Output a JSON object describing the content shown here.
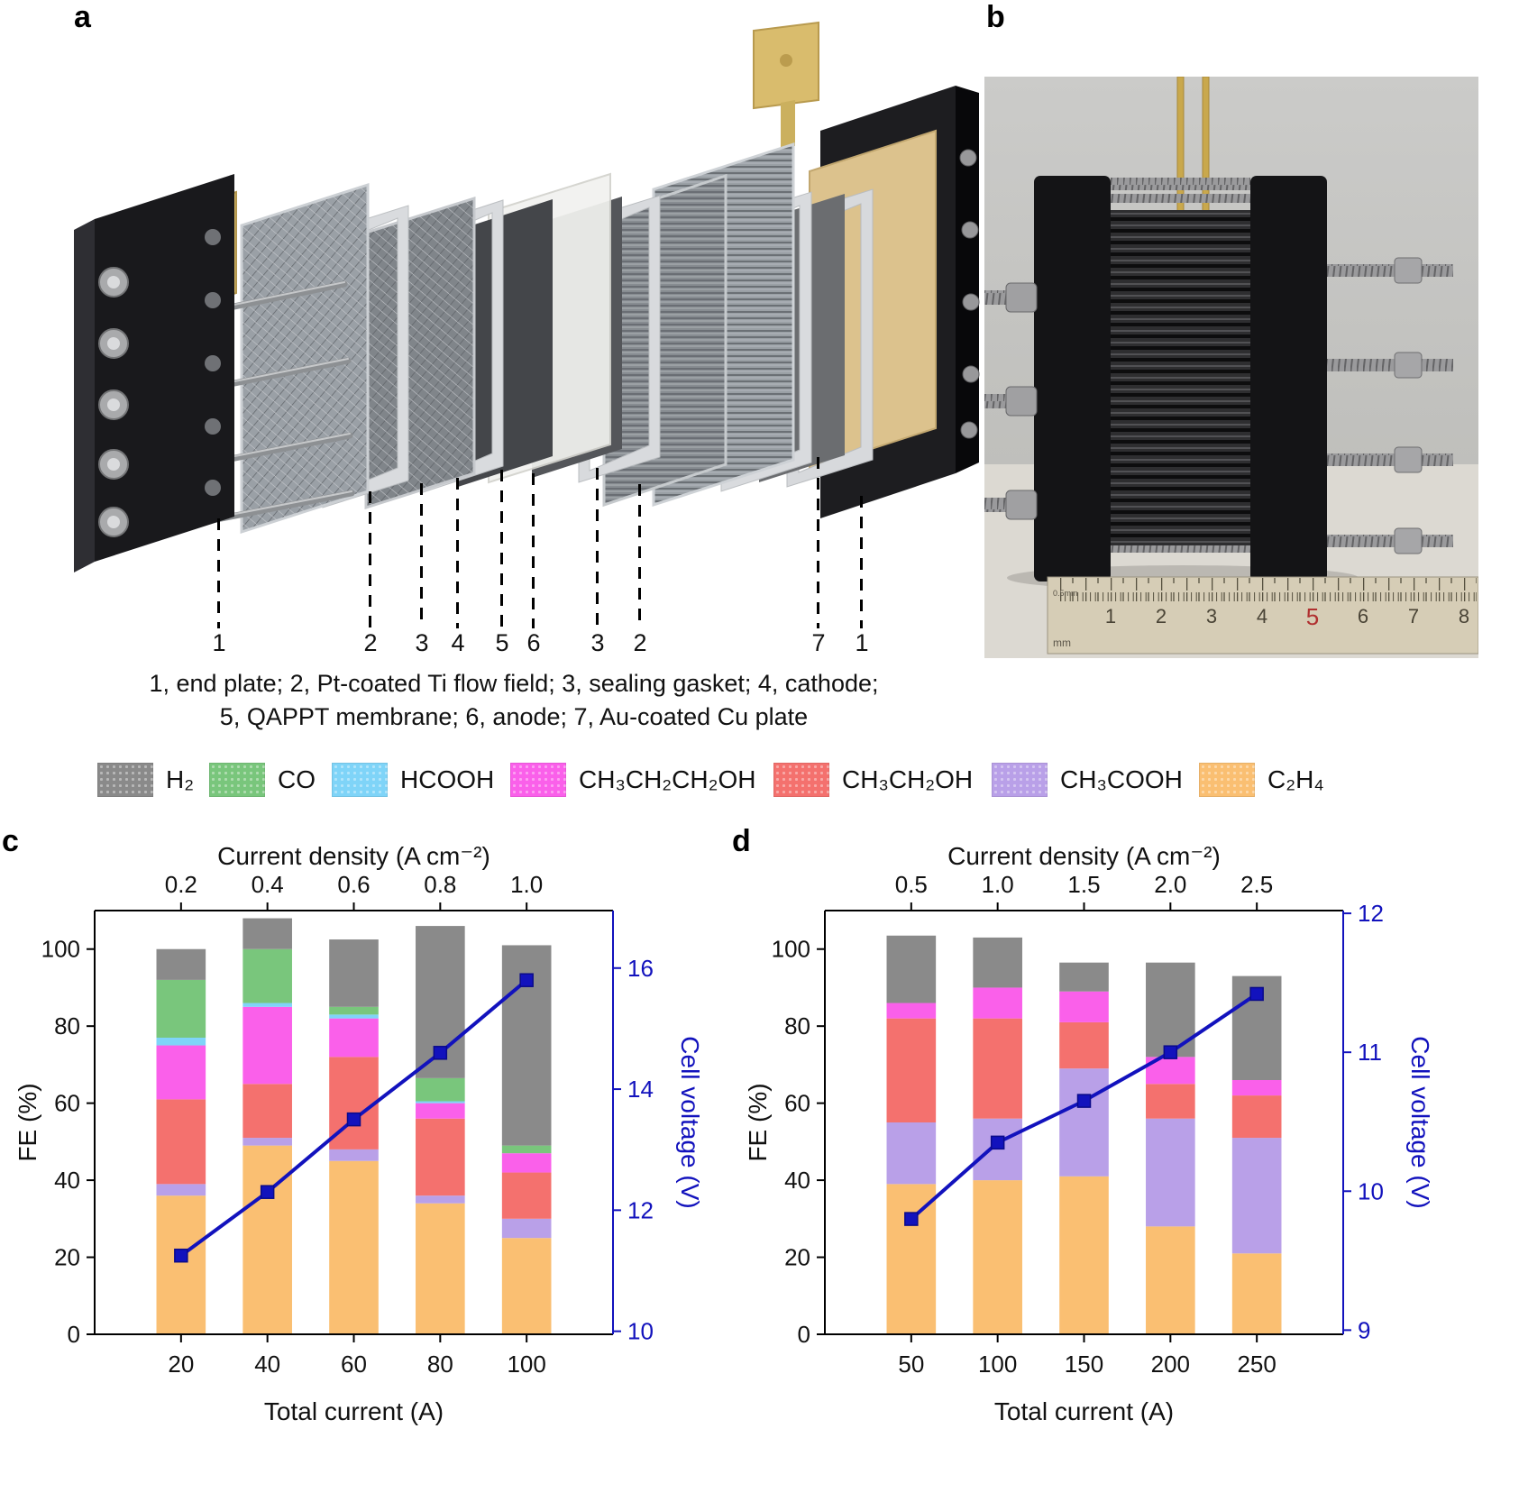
{
  "figure": {
    "panels": {
      "a": {
        "label": "a",
        "number_labels": [
          "1",
          "2",
          "3",
          "4",
          "5",
          "6",
          "3",
          "2",
          "7",
          "1"
        ],
        "caption_line1": "1, end plate; 2, Pt-coated Ti flow field; 3, sealing gasket; 4, cathode;",
        "caption_line2": "5, QAPPT membrane; 6, anode; 7, Au-coated Cu plate"
      },
      "b": {
        "label": "b",
        "ruler_numbers": [
          "1",
          "2",
          "3",
          "4",
          "5",
          "6",
          "7",
          "8"
        ],
        "ruler_fineprint": "0.5mm",
        "ruler_unit": "mm"
      },
      "c": {
        "label": "c"
      },
      "d": {
        "label": "d"
      }
    },
    "legend": [
      {
        "name": "H₂",
        "color": "#8a8a8a"
      },
      {
        "name": "CO",
        "color": "#79c67c"
      },
      {
        "name": "HCOOH",
        "color": "#7fd4f8"
      },
      {
        "name": "CH₃CH₂CH₂OH",
        "color": "#fa60ea"
      },
      {
        "name": "CH₃CH₂OH",
        "color": "#f4716e"
      },
      {
        "name": "CH₃COOH",
        "color": "#b9a0e8"
      },
      {
        "name": "C₂H₄",
        "color": "#fabf72"
      }
    ]
  },
  "chart_data": [
    {
      "svg_id": "chart-c",
      "type": "bar",
      "panel": "c",
      "top_axis": {
        "label": "Current density (A cm⁻²)",
        "ticks": [
          "0.2",
          "0.4",
          "0.6",
          "0.8",
          "1.0"
        ]
      },
      "bottom_axis": {
        "label": "Total current (A)",
        "ticks": [
          "20",
          "40",
          "60",
          "80",
          "100"
        ]
      },
      "left_axis": {
        "label": "FE (%)",
        "ticks": [
          0,
          20,
          40,
          60,
          80,
          100
        ],
        "min": 0,
        "max": 110
      },
      "right_axis": {
        "label": "Cell voltage (V)",
        "ticks": [
          10,
          12,
          14,
          16
        ],
        "min": 9.95,
        "max": 16.95,
        "color": "#1212bd"
      },
      "categories": [
        "20",
        "40",
        "60",
        "80",
        "100"
      ],
      "series": [
        {
          "name": "C₂H₄",
          "color": "#fabf72",
          "values": [
            36,
            49,
            45,
            34,
            25
          ]
        },
        {
          "name": "CH₃COOH",
          "color": "#b9a0e8",
          "values": [
            3,
            2,
            3,
            2,
            5
          ]
        },
        {
          "name": "CH₃CH₂OH",
          "color": "#f4716e",
          "values": [
            22,
            14,
            24,
            20,
            12
          ]
        },
        {
          "name": "CH₃CH₂CH₂OH",
          "color": "#fa60ea",
          "values": [
            14,
            20,
            10,
            4,
            5
          ]
        },
        {
          "name": "HCOOH",
          "color": "#7fd4f8",
          "values": [
            2,
            1,
            1,
            0.5,
            0
          ]
        },
        {
          "name": "CO",
          "color": "#79c67c",
          "values": [
            15,
            14,
            2,
            6,
            2
          ]
        },
        {
          "name": "H₂",
          "color": "#8a8a8a",
          "values": [
            8,
            8,
            17.5,
            39.5,
            52
          ]
        }
      ],
      "line": {
        "name": "Cell voltage",
        "color": "#1212bd",
        "values": [
          11.25,
          12.3,
          13.5,
          14.6,
          15.8
        ]
      }
    },
    {
      "svg_id": "chart-d",
      "type": "bar",
      "panel": "d",
      "top_axis": {
        "label": "Current density (A cm⁻²)",
        "ticks": [
          "0.5",
          "1.0",
          "1.5",
          "2.0",
          "2.5"
        ]
      },
      "bottom_axis": {
        "label": "Total current (A)",
        "ticks": [
          "50",
          "100",
          "150",
          "200",
          "250"
        ]
      },
      "left_axis": {
        "label": "FE (%)",
        "ticks": [
          0,
          20,
          40,
          60,
          80,
          100
        ],
        "min": 0,
        "max": 110
      },
      "right_axis": {
        "label": "Cell voltage (V)",
        "ticks": [
          9,
          10,
          11,
          12
        ],
        "min": 8.97,
        "max": 12.02,
        "color": "#1212bd"
      },
      "categories": [
        "50",
        "100",
        "150",
        "200",
        "250"
      ],
      "series": [
        {
          "name": "C₂H₄",
          "color": "#fabf72",
          "values": [
            39,
            40,
            41,
            28,
            21
          ]
        },
        {
          "name": "CH₃COOH",
          "color": "#b9a0e8",
          "values": [
            16,
            16,
            28,
            28,
            30
          ]
        },
        {
          "name": "CH₃CH₂OH",
          "color": "#f4716e",
          "values": [
            27,
            26,
            12,
            9,
            11
          ]
        },
        {
          "name": "CH₃CH₂CH₂OH",
          "color": "#fa60ea",
          "values": [
            4,
            8,
            8,
            7,
            4
          ]
        },
        {
          "name": "H₂",
          "color": "#8a8a8a",
          "values": [
            17.5,
            13,
            7.5,
            24.5,
            27
          ]
        }
      ],
      "line": {
        "name": "Cell voltage",
        "color": "#1212bd",
        "values": [
          9.8,
          10.35,
          10.65,
          11.0,
          11.42
        ]
      }
    }
  ]
}
